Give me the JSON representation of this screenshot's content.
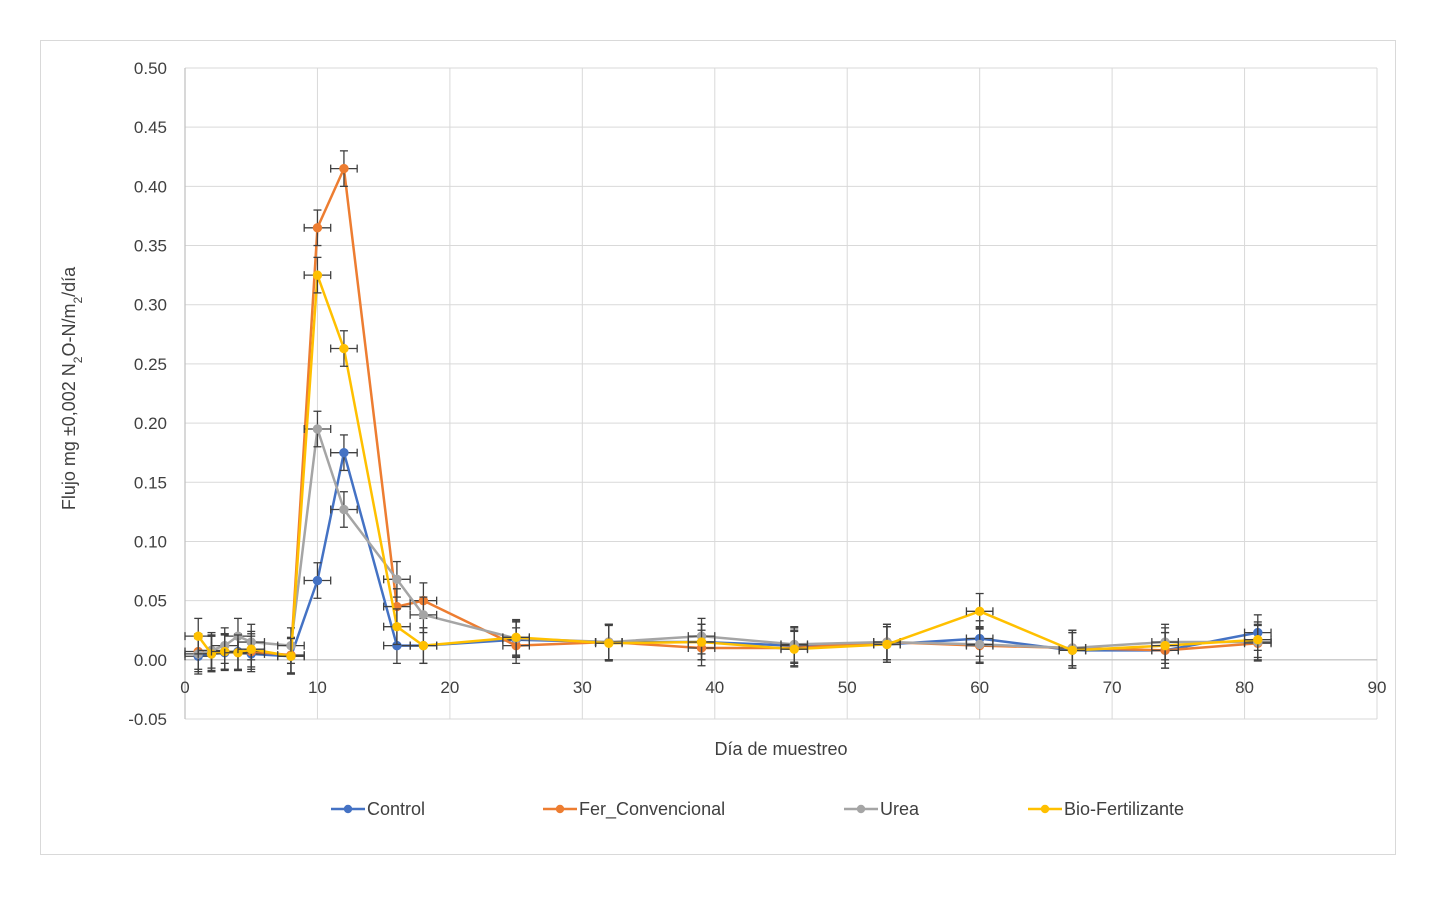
{
  "chart_data": {
    "type": "line",
    "title": "",
    "xlabel": "Día de muestreo",
    "ylabel": {
      "pre": "Flujo  mg ±0,002 N",
      "sub1": "2",
      "mid": "O-N/m",
      "sub2": "2",
      "post": "/día"
    },
    "xlim": [
      0,
      90
    ],
    "ylim": [
      -0.05,
      0.5
    ],
    "xticks": [
      0,
      10,
      20,
      30,
      40,
      50,
      60,
      70,
      80,
      90
    ],
    "yticks": [
      -0.05,
      0.0,
      0.05,
      0.1,
      0.15,
      0.2,
      0.25,
      0.3,
      0.35,
      0.4,
      0.45,
      0.5
    ],
    "ytick_labels": [
      "-0.05",
      "0.00",
      "0.05",
      "0.10",
      "0.15",
      "0.20",
      "0.25",
      "0.30",
      "0.35",
      "0.40",
      "0.45",
      "0.50"
    ],
    "xtick_labels": [
      "0",
      "10",
      "20",
      "30",
      "40",
      "50",
      "60",
      "70",
      "80",
      "90"
    ],
    "grid": true,
    "legend_position": "bottom",
    "error_bars": {
      "x": 1,
      "y": 0.015
    },
    "series": [
      {
        "name": "Control",
        "color": "#4472c4",
        "x": [
          1,
          2,
          3,
          4,
          5,
          8,
          10,
          12,
          16,
          18,
          25,
          32,
          39,
          46,
          53,
          60,
          67,
          74,
          81
        ],
        "y": [
          0.003,
          0.005,
          0.006,
          0.007,
          0.005,
          0.003,
          0.067,
          0.175,
          0.012,
          0.012,
          0.017,
          0.015,
          0.015,
          0.012,
          0.013,
          0.018,
          0.008,
          0.008,
          0.023
        ]
      },
      {
        "name": "Fer_Convencional",
        "color": "#ed7d31",
        "x": [
          1,
          2,
          3,
          4,
          5,
          8,
          10,
          12,
          16,
          18,
          25,
          32,
          39,
          46,
          53,
          60,
          67,
          74,
          81
        ],
        "y": [
          0.007,
          0.006,
          0.007,
          0.006,
          0.007,
          0.004,
          0.365,
          0.415,
          0.045,
          0.05,
          0.012,
          0.015,
          0.01,
          0.01,
          0.015,
          0.012,
          0.01,
          0.008,
          0.014
        ]
      },
      {
        "name": "Urea",
        "color": "#a5a5a5",
        "x": [
          1,
          2,
          3,
          4,
          5,
          8,
          10,
          12,
          16,
          18,
          25,
          32,
          39,
          46,
          53,
          60,
          67,
          74,
          81
        ],
        "y": [
          0.005,
          0.008,
          0.012,
          0.02,
          0.015,
          0.012,
          0.195,
          0.127,
          0.068,
          0.038,
          0.018,
          0.015,
          0.02,
          0.013,
          0.015,
          0.013,
          0.01,
          0.015,
          0.015
        ]
      },
      {
        "name": "Bio-Fertilizante",
        "color": "#ffc000",
        "x": [
          1,
          2,
          3,
          4,
          5,
          8,
          10,
          12,
          16,
          18,
          25,
          32,
          39,
          46,
          53,
          60,
          67,
          74,
          81
        ],
        "y": [
          0.02,
          0.005,
          0.007,
          0.006,
          0.009,
          0.003,
          0.325,
          0.263,
          0.028,
          0.012,
          0.019,
          0.014,
          0.015,
          0.009,
          0.013,
          0.041,
          0.008,
          0.012,
          0.017
        ]
      }
    ]
  }
}
